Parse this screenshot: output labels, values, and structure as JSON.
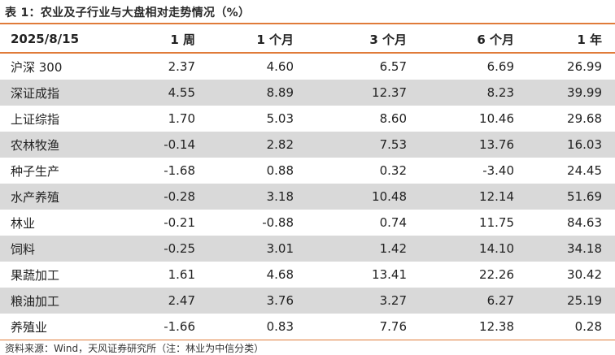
{
  "title": "表 1：农业及子行业与大盘相对走势情况（%）",
  "header": [
    "2025/8/15",
    "1 周",
    "1 个月",
    "3 个月",
    "6 个月",
    "1 年"
  ],
  "rows": [
    {
      "name": "沪深 300",
      "values": [
        "2.37",
        "4.60",
        "6.57",
        "6.69",
        "26.99"
      ],
      "shaded": false
    },
    {
      "name": "深证成指",
      "values": [
        "4.55",
        "8.89",
        "12.37",
        "8.23",
        "39.99"
      ],
      "shaded": true
    },
    {
      "name": "上证综指",
      "values": [
        "1.70",
        "5.03",
        "8.60",
        "10.46",
        "29.68"
      ],
      "shaded": false
    },
    {
      "name": "农林牧渔",
      "values": [
        "-0.14",
        "2.82",
        "7.53",
        "13.76",
        "16.03"
      ],
      "shaded": true
    },
    {
      "name": "种子生产",
      "values": [
        "-1.68",
        "0.88",
        "0.32",
        "-3.40",
        "24.45"
      ],
      "shaded": false
    },
    {
      "name": "水产养殖",
      "values": [
        "-0.28",
        "3.18",
        "10.48",
        "12.14",
        "51.69"
      ],
      "shaded": true
    },
    {
      "name": "林业",
      "values": [
        "-0.21",
        "-0.88",
        "0.74",
        "11.75",
        "84.63"
      ],
      "shaded": false
    },
    {
      "name": "饲料",
      "values": [
        "-0.25",
        "3.01",
        "1.42",
        "14.10",
        "34.18"
      ],
      "shaded": true
    },
    {
      "name": "果蔬加工",
      "values": [
        "1.61",
        "4.68",
        "13.41",
        "22.26",
        "30.42"
      ],
      "shaded": false
    },
    {
      "name": "粮油加工",
      "values": [
        "2.47",
        "3.76",
        "3.27",
        "6.27",
        "25.19"
      ],
      "shaded": true
    },
    {
      "name": "养殖业",
      "values": [
        "-1.66",
        "0.83",
        "7.76",
        "12.38",
        "0.28"
      ],
      "shaded": false
    }
  ],
  "source": "资料来源：Wind，天风证券研究所（注：林业为中信分类）"
}
